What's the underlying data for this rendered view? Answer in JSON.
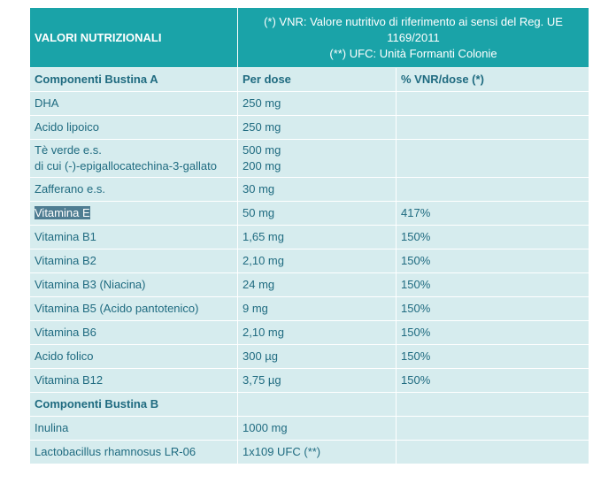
{
  "table": {
    "header": {
      "title": "VALORI NUTRIZIONALI",
      "notes": [
        "(*) VNR: Valore nutritivo di riferimento ai sensi del Reg. UE",
        "1169/2011",
        "(**) UFC: Unità Formanti Colonie"
      ]
    },
    "section_a": {
      "label": "Componenti Bustina A",
      "col2": "Per dose",
      "col3": "% VNR/dose (*)"
    },
    "rows_a": [
      {
        "name": "DHA",
        "dose": "250 mg",
        "vnr": ""
      },
      {
        "name": "Acido lipoico",
        "dose": "250 mg",
        "vnr": ""
      },
      {
        "name_lines": [
          "Tè verde e.s.",
          "di cui (-)-epigallocatechina-3-gallato"
        ],
        "dose_lines": [
          "500 mg",
          "200 mg"
        ],
        "vnr": ""
      },
      {
        "name": "Zafferano e.s.",
        "dose": "30 mg",
        "vnr": ""
      },
      {
        "name": "Vitamina E",
        "dose": "50 mg",
        "vnr": "417%",
        "selected": true
      },
      {
        "name": "Vitamina B1",
        "dose": "1,65 mg",
        "vnr": "150%"
      },
      {
        "name": "Vitamina B2",
        "dose": "2,10 mg",
        "vnr": "150%"
      },
      {
        "name": "Vitamina B3 (Niacina)",
        "dose": "24 mg",
        "vnr": "150%"
      },
      {
        "name": "Vitamina B5 (Acido pantotenico)",
        "dose": "9 mg",
        "vnr": "150%"
      },
      {
        "name": "Vitamina B6",
        "dose": "2,10 mg",
        "vnr": "150%"
      },
      {
        "name": "Acido folico",
        "dose": "300 µg",
        "vnr": "150%"
      },
      {
        "name": "Vitamina B12",
        "dose": "3,75 µg",
        "vnr": "150%"
      }
    ],
    "section_b": {
      "label": "Componenti Bustina B"
    },
    "rows_b": [
      {
        "name": "Inulina",
        "dose": "1000 mg",
        "vnr": ""
      },
      {
        "name": "Lactobacillus rhamnosus LR-06",
        "dose": "1x109 UFC (**)",
        "vnr": ""
      }
    ],
    "colors": {
      "header_bg": "#1aa3a8",
      "row_bg": "#d6ecee",
      "text": "#1f6b80",
      "selection": "#4f7d92"
    }
  }
}
